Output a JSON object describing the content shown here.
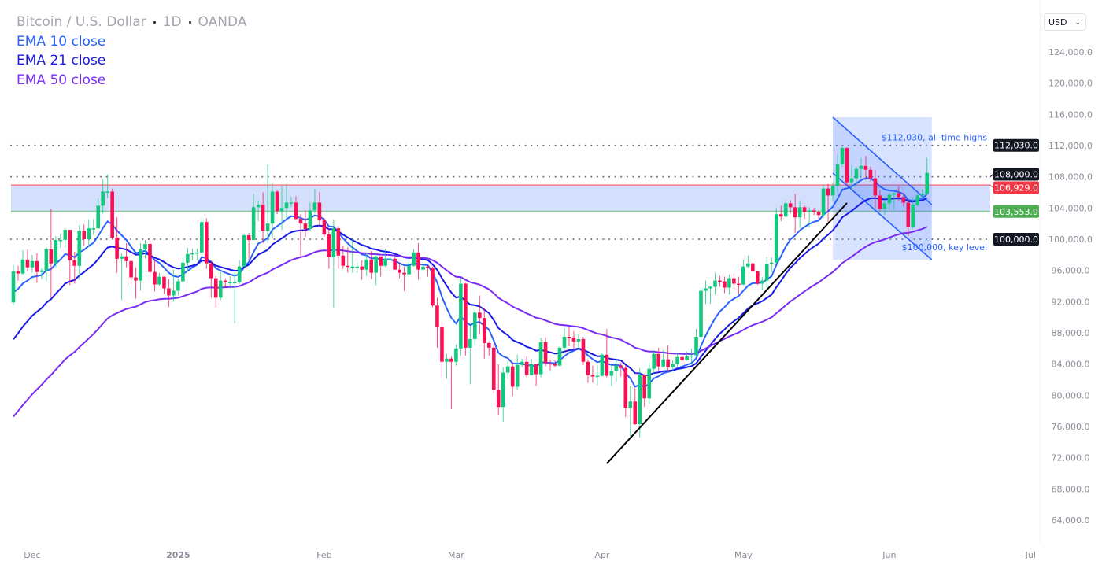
{
  "header": {
    "symbol": "Bitcoin / U.S. Dollar",
    "interval": "1D",
    "source": "OANDA"
  },
  "currency_selector": {
    "value": "USD"
  },
  "indicators": [
    {
      "label": "EMA 10 close",
      "length": 10,
      "color": "#2962ff",
      "start_value": 92600
    },
    {
      "label": "EMA 21 close",
      "length": 21,
      "color": "#1a1ae6",
      "start_value": 86300
    },
    {
      "label": "EMA 50 close",
      "length": 50,
      "color": "#7a2cf5",
      "start_value": 76500
    }
  ],
  "chart_data": {
    "type": "candlestick",
    "start_date": "2024-11-27",
    "interval": "1D",
    "colors": {
      "up": "#10c97d",
      "down": "#fa0f55"
    },
    "open": [
      91900,
      95900,
      95600,
      97400,
      96400,
      97200,
      95800,
      96000,
      98700,
      96900,
      99900,
      99900,
      101200,
      97300,
      96600,
      101100,
      100000,
      101400,
      101400,
      104300,
      106100,
      106100,
      100200,
      97500,
      97800,
      97200,
      95100,
      94700,
      98700,
      99400,
      95800,
      94200,
      95200,
      93700,
      92800,
      93400,
      94600,
      97000,
      98100,
      98200,
      98300,
      102200,
      96900,
      95000,
      92500,
      94700,
      94500,
      94500,
      94500,
      96500,
      100500,
      99900,
      104100,
      104400,
      101100,
      102000,
      106100,
      103600,
      104000,
      104700,
      104700,
      102600,
      102000,
      101300,
      103700,
      104700,
      102400,
      100600,
      97700,
      101400,
      97900,
      96600,
      96500,
      96500,
      96500,
      96100,
      97400,
      95700,
      97800,
      96600,
      97500,
      97500,
      96100,
      95700,
      95500,
      96600,
      98300,
      96100,
      96500,
      96300,
      91500,
      88700,
      84300,
      84700,
      84300,
      86000,
      94300,
      86100,
      87200,
      90600,
      89900,
      86700,
      86100,
      80700,
      78500,
      82900,
      83700,
      81100,
      83900,
      84300,
      82600,
      84000,
      82700,
      86800,
      84100,
      84000,
      83800,
      86100,
      87500,
      87400,
      86900,
      87200,
      84300,
      82600,
      82400,
      82500,
      85200,
      82500,
      83100,
      83800,
      83500,
      78400,
      79200,
      76300,
      82600,
      79600,
      83400,
      85300,
      83700,
      84600,
      83600,
      84000,
      84900,
      84500,
      85000,
      85100,
      87500,
      93400,
      93700,
      93900,
      94700,
      94600,
      93800,
      95000,
      94300,
      94200,
      96500,
      96900,
      95900,
      94300,
      94700,
      96800,
      97000,
      103200,
      102900,
      104600,
      104100,
      102800,
      104100,
      103500,
      103700,
      103500,
      103100,
      106500,
      105600,
      106800,
      109600,
      111700,
      107300,
      107800,
      109000,
      109400,
      108900,
      107800,
      105600,
      103900,
      104600,
      105700,
      105900,
      105400,
      104700,
      101600,
      104400,
      105600,
      105800
    ],
    "high": [
      96700,
      96600,
      98600,
      98700,
      98000,
      98200,
      96300,
      99000,
      103900,
      100400,
      100600,
      101500,
      101200,
      98400,
      101800,
      101900,
      102500,
      102600,
      105200,
      107700,
      108300,
      106500,
      102800,
      98200,
      99500,
      97400,
      96400,
      99500,
      99900,
      99900,
      97300,
      95700,
      95200,
      94900,
      96100,
      94900,
      97800,
      98900,
      98800,
      98800,
      102700,
      102700,
      97300,
      95300,
      95800,
      95000,
      95300,
      95800,
      97300,
      100700,
      100800,
      105800,
      104900,
      106000,
      109600,
      107200,
      106300,
      106800,
      107100,
      105400,
      105500,
      103200,
      103700,
      104700,
      106400,
      106000,
      102700,
      101400,
      102500,
      101700,
      99200,
      99000,
      100100,
      96900,
      97300,
      98300,
      98500,
      98100,
      97800,
      98800,
      97900,
      97700,
      97000,
      96500,
      97000,
      98700,
      99500,
      96900,
      96700,
      96500,
      92500,
      89300,
      85300,
      85000,
      86500,
      95000,
      94400,
      88900,
      91000,
      92800,
      91200,
      86900,
      86500,
      84000,
      83600,
      84400,
      84300,
      85200,
      84700,
      85000,
      84700,
      84000,
      87400,
      87400,
      84600,
      84500,
      86300,
      88600,
      88700,
      88200,
      87800,
      87500,
      84600,
      83800,
      83900,
      85500,
      88500,
      83900,
      84700,
      84200,
      83800,
      81200,
      80900,
      83500,
      82700,
      84200,
      85800,
      86100,
      85800,
      86400,
      84500,
      85400,
      85100,
      85600,
      86000,
      88500,
      93800,
      94700,
      94000,
      95700,
      95300,
      95200,
      95500,
      95600,
      95200,
      97400,
      97900,
      96900,
      96000,
      95200,
      97700,
      97700,
      104000,
      104300,
      104900,
      105000,
      105800,
      104900,
      104300,
      104100,
      104000,
      103700,
      107000,
      107100,
      107300,
      110800,
      111900,
      111800,
      109500,
      109300,
      110400,
      110700,
      109300,
      108900,
      106300,
      104900,
      105900,
      106200,
      106800,
      105900,
      105000,
      105400,
      106000,
      106400,
      110400
    ],
    "low": [
      91500,
      94700,
      95400,
      95900,
      95700,
      94400,
      94900,
      94600,
      92500,
      96400,
      98900,
      98900,
      94100,
      94300,
      94800,
      99200,
      99300,
      100600,
      101200,
      103300,
      105300,
      100000,
      95700,
      92200,
      96400,
      94200,
      92400,
      93400,
      97500,
      95200,
      93300,
      94000,
      93000,
      91300,
      92000,
      92800,
      94400,
      96100,
      97300,
      97300,
      97900,
      96200,
      92500,
      91200,
      92200,
      93800,
      93700,
      89200,
      94300,
      96500,
      97300,
      99900,
      102300,
      99500,
      99500,
      100100,
      103200,
      101200,
      102700,
      104100,
      102500,
      97800,
      100300,
      101100,
      103300,
      101600,
      100300,
      96200,
      91200,
      96200,
      96200,
      95700,
      95700,
      95700,
      94800,
      95300,
      94900,
      94100,
      95200,
      96400,
      97300,
      96100,
      95000,
      93400,
      95300,
      96500,
      94800,
      95900,
      95200,
      91300,
      86100,
      82300,
      82100,
      78200,
      83800,
      85100,
      85100,
      81400,
      86400,
      87800,
      84700,
      85100,
      80200,
      77400,
      76600,
      82100,
      79900,
      80700,
      83600,
      82300,
      82500,
      81200,
      82300,
      83700,
      83200,
      83600,
      83700,
      85900,
      86300,
      85800,
      85900,
      83900,
      81600,
      81600,
      81300,
      82400,
      82300,
      81200,
      81700,
      82400,
      77200,
      74500,
      76200,
      74600,
      78500,
      78900,
      82800,
      83000,
      83600,
      83000,
      83100,
      83700,
      84100,
      84400,
      83900,
      85100,
      87100,
      91700,
      91700,
      92900,
      93900,
      93100,
      92900,
      93600,
      92900,
      94100,
      96300,
      95800,
      94100,
      93500,
      93400,
      95800,
      96900,
      102300,
      102800,
      103300,
      100800,
      101400,
      102600,
      101500,
      103100,
      102600,
      102700,
      102000,
      104900,
      106000,
      109300,
      106800,
      106300,
      106800,
      107800,
      107600,
      107400,
      104000,
      103600,
      103100,
      103700,
      103800,
      104900,
      104200,
      100400,
      101300,
      104200,
      105100,
      105700
    ],
    "close": [
      95900,
      95600,
      97400,
      96400,
      97200,
      95800,
      96000,
      98700,
      96900,
      99900,
      99900,
      101200,
      97300,
      96600,
      101100,
      100000,
      101400,
      101400,
      104300,
      106100,
      106100,
      100200,
      97500,
      97800,
      97200,
      95100,
      94700,
      98700,
      99400,
      95800,
      94200,
      95200,
      93700,
      92800,
      93400,
      94600,
      97000,
      98100,
      98200,
      98300,
      102200,
      96900,
      95000,
      92500,
      94700,
      94500,
      94500,
      94500,
      96500,
      100500,
      99900,
      104100,
      104400,
      101100,
      102000,
      106100,
      103600,
      104000,
      104700,
      104700,
      102600,
      102000,
      101300,
      103700,
      104700,
      102400,
      100600,
      97700,
      101400,
      97900,
      96600,
      96500,
      96500,
      96500,
      96100,
      97400,
      95700,
      97800,
      96600,
      97500,
      97500,
      96100,
      95700,
      95500,
      96600,
      98300,
      96100,
      96500,
      96300,
      91500,
      88700,
      84300,
      84700,
      84300,
      86000,
      94300,
      86100,
      87200,
      90600,
      89900,
      86700,
      86100,
      80700,
      78500,
      82900,
      83700,
      81100,
      83900,
      84300,
      82600,
      84000,
      82700,
      86800,
      84100,
      84000,
      83800,
      86100,
      87500,
      87400,
      86900,
      87200,
      84300,
      82600,
      82400,
      82500,
      85200,
      82500,
      83100,
      83800,
      83500,
      78400,
      79200,
      76300,
      82600,
      79600,
      83400,
      85300,
      83700,
      84600,
      83600,
      84000,
      84900,
      84500,
      85000,
      85100,
      87500,
      93400,
      93700,
      93900,
      94700,
      94600,
      93800,
      95000,
      94300,
      94200,
      96500,
      96900,
      95900,
      94300,
      94700,
      96800,
      97000,
      103200,
      102900,
      104600,
      104100,
      102800,
      104100,
      103500,
      103700,
      103500,
      103100,
      106500,
      105600,
      106800,
      109600,
      111700,
      107300,
      107800,
      109000,
      109400,
      108900,
      107800,
      105600,
      103900,
      104600,
      105700,
      105900,
      105400,
      104700,
      101600,
      104400,
      105600,
      105800,
      108500
    ],
    "y_axis": {
      "range": [
        62000,
        126000
      ],
      "tick_labels": [
        "124,000.0",
        "120,000.0",
        "116,000.0",
        "112,000.0",
        "108,000.0",
        "104,000.0",
        "100,000.0",
        "96,000.0",
        "92,000.0",
        "88,000.0",
        "84,000.0",
        "80,000.0",
        "76,000.0",
        "72,000.0",
        "68,000.0",
        "64,000.0"
      ],
      "ticks": [
        124000,
        120000,
        116000,
        112000,
        108000,
        104000,
        100000,
        96000,
        92000,
        88000,
        84000,
        80000,
        76000,
        72000,
        68000,
        64000
      ]
    },
    "x_axis": {
      "tick_labels": [
        "Dec",
        "2025",
        "Feb",
        "Mar",
        "Apr",
        "May",
        "Jun",
        "Jul"
      ],
      "tick_dates": [
        "2024-12-01",
        "2025-01-01",
        "2025-02-01",
        "2025-03-01",
        "2025-04-01",
        "2025-05-01",
        "2025-06-01",
        "2025-07-01"
      ]
    },
    "horizontal_levels": [
      {
        "price": 112030,
        "label": "112,030.0",
        "note": "$112,030, all-time highs",
        "style": "dotted",
        "badge_color": "#131722"
      },
      {
        "price": 108000,
        "label": "108,000.0",
        "note": "",
        "style": "dotted",
        "badge_color": "#131722"
      },
      {
        "price": 100000,
        "label": "100,000.0",
        "note": "$100,000, key level",
        "style": "dotted",
        "badge_color": "#131722"
      }
    ],
    "zone": {
      "top": {
        "price": 106929,
        "label": "106,929.0",
        "color": "#f23645"
      },
      "bottom": {
        "price": 103553.9,
        "label": "103,553.9",
        "color": "#4caf50"
      },
      "fill": "#d4dffd"
    },
    "trendline": {
      "from": {
        "date": "2025-04-02",
        "price": 71260
      },
      "to": {
        "date": "2025-05-23",
        "price": 104640
      },
      "color": "#000000"
    },
    "channel": {
      "upper": {
        "from": {
          "date": "2025-05-20",
          "price": 115630
        },
        "to": {
          "date": "2025-06-10",
          "price": 104440
        }
      },
      "lower": {
        "from": {
          "date": "2025-05-20",
          "price": 108470
        },
        "to": {
          "date": "2025-06-10",
          "price": 97380
        }
      },
      "color": "#2962ff"
    }
  }
}
